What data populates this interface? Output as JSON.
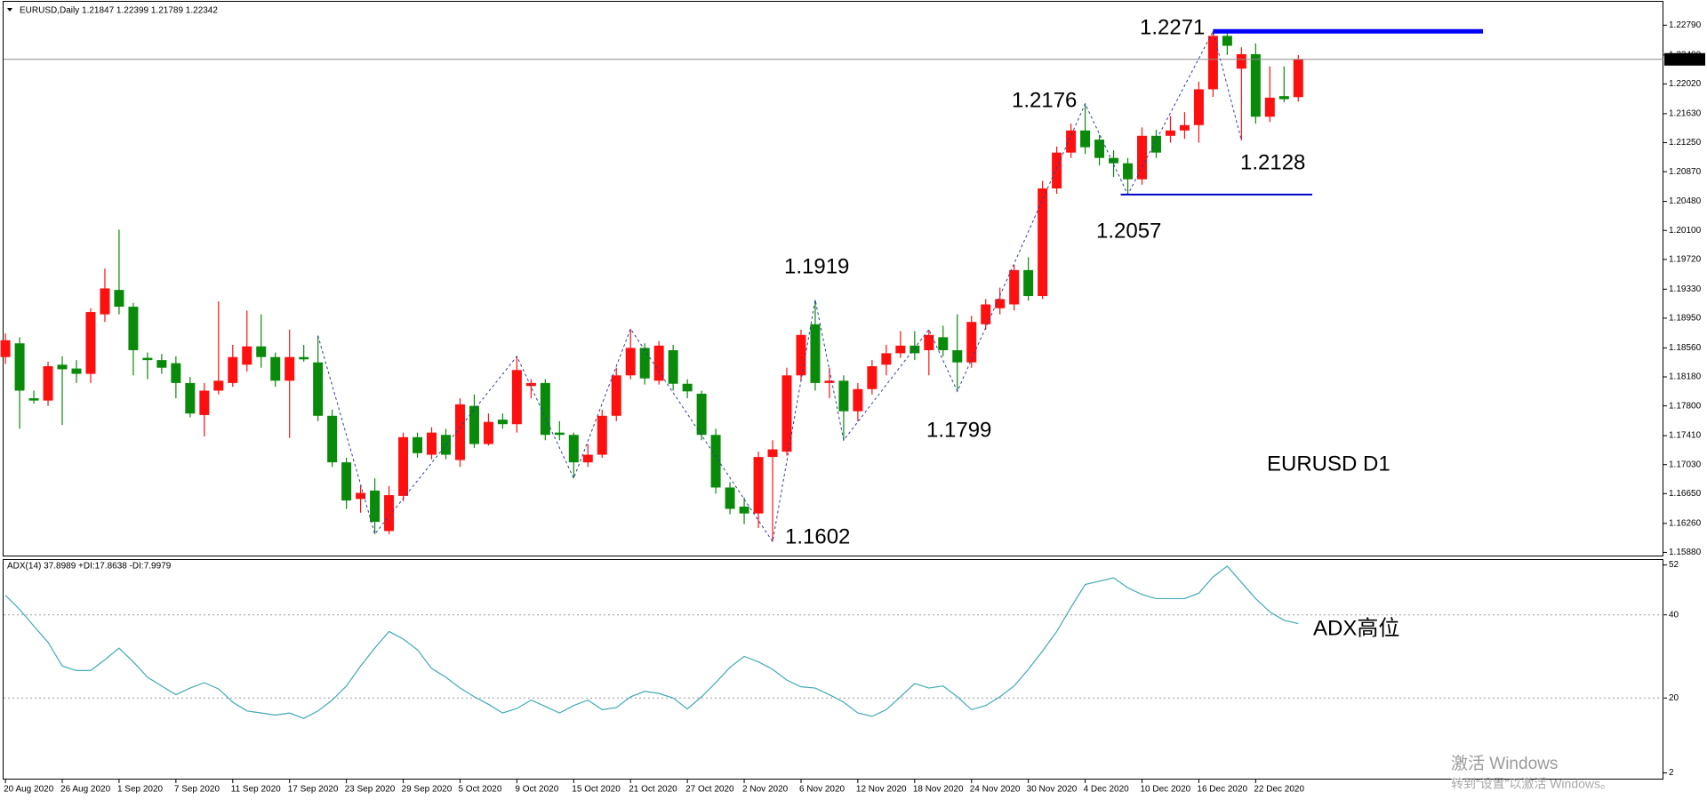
{
  "chart_data": [
    {
      "type": "candlestick",
      "title": "EURUSD,Daily  1.21847 1.22399 1.21789 1.22342",
      "categories": [
        "20 Aug 2020",
        null,
        null,
        null,
        "26 Aug 2020",
        null,
        null,
        null,
        "1 Sep 2020",
        null,
        null,
        null,
        "7 Sep 2020",
        null,
        null,
        null,
        "11 Sep 2020",
        null,
        null,
        null,
        "17 Sep 2020",
        null,
        null,
        null,
        "23 Sep 2020",
        null,
        null,
        null,
        "29 Sep 2020",
        null,
        null,
        null,
        "5 Oct 2020",
        null,
        null,
        null,
        "9 Oct 2020",
        null,
        null,
        null,
        "15 Oct 2020",
        null,
        null,
        null,
        "21 Oct 2020",
        null,
        null,
        null,
        "27 Oct 2020",
        null,
        null,
        null,
        "2 Nov 2020",
        null,
        null,
        null,
        "6 Nov 2020",
        null,
        null,
        null,
        "12 Nov 2020",
        null,
        null,
        null,
        "18 Nov 2020",
        null,
        null,
        null,
        "24 Nov 2020",
        null,
        null,
        null,
        "30 Nov 2020",
        null,
        null,
        null,
        "4 Dec 2020",
        null,
        null,
        null,
        "10 Dec 2020",
        null,
        null,
        null,
        "16 Dec 2020",
        null,
        null,
        null,
        "22 Dec 2020",
        null,
        null,
        null
      ],
      "open": [
        1.1844,
        1.1862,
        1.179,
        1.1787,
        1.1834,
        1.1829,
        1.1822,
        1.19,
        1.1932,
        1.191,
        1.1843,
        1.184,
        1.1836,
        1.181,
        1.1768,
        1.18,
        1.181,
        1.1834,
        1.1858,
        1.1844,
        1.1813,
        1.1844,
        1.1837,
        1.1767,
        1.1706,
        1.1658,
        1.1669,
        1.1616,
        1.1662,
        1.1739,
        1.1716,
        1.1742,
        1.1709,
        1.178,
        1.173,
        1.1762,
        1.1756,
        1.1806,
        1.181,
        1.1745,
        1.1742,
        1.1706,
        1.1716,
        1.1767,
        1.182,
        1.1856,
        1.1813,
        1.1853,
        1.1809,
        1.1796,
        1.1742,
        1.1673,
        1.1648,
        1.1639,
        1.1713,
        1.172,
        1.182,
        1.1887,
        1.181,
        1.1813,
        1.1773,
        1.1802,
        1.1834,
        1.1849,
        1.1859,
        1.1853,
        1.187,
        1.1853,
        1.1837,
        1.1887,
        1.1908,
        1.1913,
        1.1958,
        1.1924,
        1.2065,
        1.2112,
        1.2141,
        1.2129,
        1.2105,
        1.2098,
        1.2077,
        1.2134,
        1.2134,
        1.2141,
        1.2148,
        1.2195,
        1.2265,
        1.2222,
        1.2241,
        1.2159,
        1.2186,
        1.21847
      ],
      "high": [
        1.1875,
        1.187,
        1.18,
        1.1838,
        1.1845,
        1.184,
        1.1908,
        1.196,
        1.2011,
        1.1915,
        1.185,
        1.1848,
        1.1845,
        1.1818,
        1.181,
        1.1917,
        1.186,
        1.1905,
        1.19,
        1.185,
        1.188,
        1.186,
        1.1872,
        1.1775,
        1.1712,
        1.1675,
        1.1685,
        1.1675,
        1.1745,
        1.1745,
        1.1752,
        1.175,
        1.179,
        1.1795,
        1.177,
        1.177,
        1.1845,
        1.1815,
        1.1815,
        1.176,
        1.1745,
        1.173,
        1.1775,
        1.183,
        1.1881,
        1.1862,
        1.1865,
        1.186,
        1.1815,
        1.18,
        1.175,
        1.168,
        1.166,
        1.172,
        1.1735,
        1.183,
        1.188,
        1.1919,
        1.183,
        1.182,
        1.181,
        1.184,
        1.186,
        1.1878,
        1.1878,
        1.188,
        1.1885,
        1.19,
        1.1898,
        1.192,
        1.1935,
        1.1965,
        1.1975,
        1.2075,
        1.212,
        1.215,
        1.2176,
        1.2135,
        1.2115,
        1.2105,
        1.2145,
        1.2142,
        1.216,
        1.2165,
        1.2205,
        1.2271,
        1.2268,
        1.225,
        1.2255,
        1.2225,
        1.2225,
        1.22399
      ],
      "low": [
        1.1835,
        1.175,
        1.1783,
        1.178,
        1.1755,
        1.181,
        1.181,
        1.189,
        1.19,
        1.182,
        1.1815,
        1.1822,
        1.179,
        1.1765,
        1.174,
        1.1795,
        1.1805,
        1.1825,
        1.183,
        1.1805,
        1.1738,
        1.1838,
        1.176,
        1.17,
        1.1645,
        1.164,
        1.1612,
        1.1612,
        1.1655,
        1.1712,
        1.171,
        1.171,
        1.17,
        1.1725,
        1.1728,
        1.175,
        1.1745,
        1.179,
        1.1735,
        1.1735,
        1.1685,
        1.17,
        1.1712,
        1.176,
        1.1815,
        1.1808,
        1.1808,
        1.18,
        1.179,
        1.1735,
        1.1665,
        1.1638,
        1.1625,
        1.162,
        1.1602,
        1.1715,
        1.1812,
        1.18,
        1.179,
        1.1735,
        1.176,
        1.1795,
        1.182,
        1.1843,
        1.184,
        1.182,
        1.1845,
        1.1799,
        1.183,
        1.188,
        1.19,
        1.1905,
        1.1918,
        1.192,
        1.2058,
        1.2105,
        1.211,
        1.2095,
        1.208,
        1.2057,
        1.207,
        1.2105,
        1.2125,
        1.213,
        1.2125,
        1.2185,
        1.224,
        1.2128,
        1.215,
        1.2152,
        1.2178,
        1.21789
      ],
      "close": [
        1.1866,
        1.18,
        1.1787,
        1.1832,
        1.1828,
        1.1822,
        1.1903,
        1.1934,
        1.191,
        1.1853,
        1.184,
        1.183,
        1.181,
        1.177,
        1.18,
        1.1813,
        1.1844,
        1.1858,
        1.1844,
        1.1813,
        1.1844,
        1.1841,
        1.1767,
        1.1706,
        1.1656,
        1.1666,
        1.1628,
        1.1663,
        1.1739,
        1.1718,
        1.1745,
        1.1716,
        1.1782,
        1.173,
        1.1759,
        1.1756,
        1.1827,
        1.181,
        1.1742,
        1.1742,
        1.1706,
        1.1716,
        1.1767,
        1.182,
        1.1856,
        1.1816,
        1.1859,
        1.1809,
        1.1799,
        1.1742,
        1.1673,
        1.1645,
        1.1639,
        1.1713,
        1.1723,
        1.182,
        1.1873,
        1.181,
        1.1813,
        1.1773,
        1.1802,
        1.1832,
        1.1849,
        1.1859,
        1.1849,
        1.1873,
        1.1853,
        1.1837,
        1.189,
        1.1913,
        1.192,
        1.1958,
        1.1924,
        1.2065,
        1.2112,
        1.2141,
        1.2119,
        1.2105,
        1.2098,
        1.2077,
        1.2134,
        1.2112,
        1.2141,
        1.2148,
        1.2195,
        1.2265,
        1.2252,
        1.2241,
        1.2159,
        1.2184,
        1.2182,
        1.22342
      ],
      "up_color": "#ff1010",
      "down_color": "#0a8a0a",
      "ylim": [
        1.1585,
        1.2312
      ],
      "yticks": [
        {
          "value": 1.2279,
          "label": "1.22790"
        },
        {
          "value": 1.224,
          "label": "1.22400"
        },
        {
          "value": 1.2202,
          "label": "1.22020"
        },
        {
          "value": 1.2163,
          "label": "1.21630"
        },
        {
          "value": 1.2125,
          "label": "1.21250"
        },
        {
          "value": 1.2087,
          "label": "1.20870"
        },
        {
          "value": 1.2048,
          "label": "1.20480"
        },
        {
          "value": 1.201,
          "label": "1.20100"
        },
        {
          "value": 1.1972,
          "label": "1.19720"
        },
        {
          "value": 1.1933,
          "label": "1.19330"
        },
        {
          "value": 1.1895,
          "label": "1.18950"
        },
        {
          "value": 1.1856,
          "label": "1.18560"
        },
        {
          "value": 1.1818,
          "label": "1.18180"
        },
        {
          "value": 1.178,
          "label": "1.17800"
        },
        {
          "value": 1.1741,
          "label": "1.17410"
        },
        {
          "value": 1.1703,
          "label": "1.17030"
        },
        {
          "value": 1.1665,
          "label": "1.16650"
        },
        {
          "value": 1.1626,
          "label": "1.16260"
        },
        {
          "value": 1.1588,
          "label": "1.15880"
        }
      ],
      "zigzag": {
        "color": "#2a3f9e",
        "x": [
          22,
          26,
          36,
          40,
          44,
          54,
          57,
          59,
          65,
          67,
          76,
          79,
          85,
          87
        ],
        "values": [
          1.1872,
          1.1612,
          1.1845,
          1.1685,
          1.1881,
          1.1602,
          1.1919,
          1.1735,
          1.188,
          1.1799,
          1.2176,
          1.2057,
          1.2271,
          1.2128
        ]
      },
      "levels": [
        {
          "value": 1.2271,
          "color": "#0000ff"
        },
        {
          "value": 1.2057,
          "color": "#0000cc"
        }
      ],
      "annotations": [
        "1.2271",
        "1.2176",
        "1.2128",
        "1.2057",
        "1.1919",
        "1.1799",
        "1.1602",
        "EURUSD D1"
      ],
      "annotation_color": "#e8202a"
    },
    {
      "type": "line",
      "title": "ADX(14) 37.8989 +DI:17.8638 -DI:7.9979",
      "values": [
        44.7,
        41.3,
        37.3,
        33.4,
        27.7,
        26.6,
        26.6,
        29.2,
        32,
        28.7,
        25,
        22.9,
        20.8,
        22.4,
        23.7,
        22.2,
        19,
        16.9,
        16.4,
        15.9,
        16.4,
        15.1,
        16.9,
        19.5,
        22.9,
        27.7,
        32,
        36,
        34.2,
        31.6,
        27.1,
        25,
        22.4,
        20.3,
        18.5,
        16.4,
        17.5,
        19.5,
        18,
        16.4,
        18.2,
        19.5,
        17.2,
        17.7,
        20.3,
        21.6,
        21.1,
        20,
        17.4,
        20.3,
        23.7,
        27.4,
        30,
        28.7,
        26.9,
        24.3,
        22.7,
        22.4,
        20.8,
        19,
        16.4,
        15.6,
        17.2,
        20.3,
        23.5,
        22.4,
        22.9,
        20.3,
        17.2,
        18.2,
        20.3,
        22.9,
        26.9,
        31.3,
        36,
        41.8,
        47.3,
        48.1,
        48.9,
        46.5,
        44.9,
        43.9,
        43.9,
        43.9,
        45.2,
        49.1,
        51.7,
        47.8,
        43.9,
        40.7,
        38.7,
        37.9
      ],
      "color": "#3fa9b5",
      "ylim": [
        0.4,
        53.4
      ],
      "yticks": [
        52,
        40,
        20,
        2
      ],
      "levels": [
        40,
        20
      ],
      "annotations": [
        "ADX高位"
      ],
      "annotation_color": "#e8202a"
    }
  ],
  "watermark": {
    "line1": "激活 Windows",
    "line2": "转到“设置”以激活 Windows。"
  }
}
